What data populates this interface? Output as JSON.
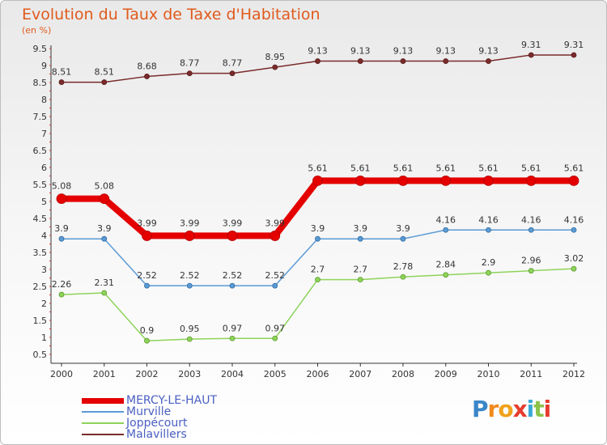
{
  "chart_data": {
    "type": "line",
    "title": "Evolution du Taux de Taxe d'Habitation",
    "subtitle": "(en %)",
    "x": [
      "2000",
      "2001",
      "2002",
      "2003",
      "2004",
      "2005",
      "2006",
      "2007",
      "2008",
      "2009",
      "2010",
      "2011",
      "2012"
    ],
    "y_ticks": [
      "0.5",
      "1",
      "1.5",
      "2",
      "2.5",
      "3",
      "3.5",
      "4",
      "4.5",
      "5",
      "5.5",
      "6",
      "6.5",
      "7",
      "7.5",
      "8",
      "8.5",
      "9",
      "9.5"
    ],
    "ylim": [
      0.5,
      9.5
    ],
    "grid": false,
    "series": [
      {
        "name": "Malavillers",
        "color": "#7a2b2b",
        "values": [
          8.51,
          8.51,
          8.68,
          8.77,
          8.77,
          8.95,
          9.13,
          9.13,
          9.13,
          9.13,
          9.13,
          9.31,
          9.31
        ],
        "labels": [
          "8.51",
          "8.51",
          "8.68",
          "8.77",
          "8.77",
          "8.95",
          "9.13",
          "9.13",
          "9.13",
          "9.13",
          "9.13",
          "9.31",
          "9.31"
        ]
      },
      {
        "name": "Joppécourt",
        "color": "#8ed35a",
        "values": [
          2.26,
          2.31,
          0.9,
          0.95,
          0.97,
          0.97,
          2.7,
          2.7,
          2.78,
          2.84,
          2.9,
          2.96,
          3.02
        ],
        "labels": [
          "2.26",
          "2.31",
          "0.9",
          "0.95",
          "0.97",
          "0.97",
          "2.7",
          "2.7",
          "2.78",
          "2.84",
          "2.9",
          "2.96",
          "3.02"
        ]
      },
      {
        "name": "Murville",
        "color": "#5b9bd5",
        "values": [
          3.9,
          3.9,
          2.52,
          2.52,
          2.52,
          2.52,
          3.9,
          3.9,
          3.9,
          4.16,
          4.16,
          4.16,
          4.16
        ],
        "labels": [
          "3.9",
          "3.9",
          "2.52",
          "2.52",
          "2.52",
          "2.52",
          "3.9",
          "3.9",
          "3.9",
          "4.16",
          "4.16",
          "4.16",
          "4.16"
        ]
      },
      {
        "name": "MERCY-LE-HAUT",
        "color": "#e50000",
        "values": [
          5.08,
          5.08,
          3.99,
          3.99,
          3.99,
          3.99,
          5.61,
          5.61,
          5.61,
          5.61,
          5.61,
          5.61,
          5.61
        ],
        "labels": [
          "5.08",
          "5.08",
          "3.99",
          "3.99",
          "3.99",
          "3.99",
          "5.61",
          "5.61",
          "5.61",
          "5.61",
          "5.61",
          "5.61",
          "5.61"
        ]
      }
    ],
    "legend": [
      "MERCY-LE-HAUT",
      "Murville",
      "Joppécourt",
      "Malavillers"
    ],
    "legend_position": "bottom-left"
  },
  "brand": {
    "text": "Proxiti",
    "letters": [
      "P",
      "r",
      "o",
      "x",
      "i",
      "t",
      "i"
    ],
    "colors": [
      "#3a86c8",
      "#f08a1c",
      "#f0a21c",
      "#e63c2e",
      "#3aa8d8",
      "#8bc34a",
      "#e63c2e"
    ]
  }
}
